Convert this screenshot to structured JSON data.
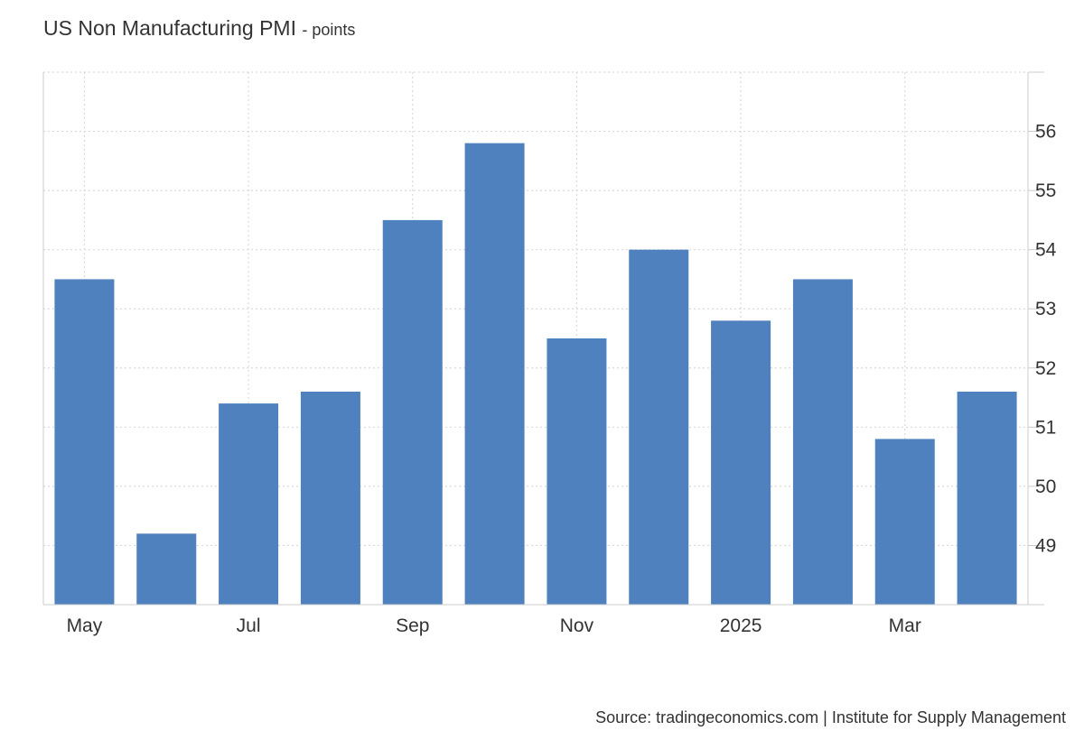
{
  "title": "US Non Manufacturing PMI",
  "subtitle": "- points",
  "source": "Source: tradingeconomics.com | Institute for Supply Management",
  "colors": {
    "bar": "#4e81bd",
    "grid": "#d9d9d9",
    "axis": "#cccccc",
    "text": "#333333"
  },
  "chart_data": {
    "type": "bar",
    "categories": [
      "May",
      "",
      "Jul",
      "",
      "Sep",
      "",
      "Nov",
      "",
      "2025",
      "",
      "Mar",
      ""
    ],
    "x_tick_labels": [
      "May",
      "Jul",
      "Sep",
      "Nov",
      "2025",
      "Mar"
    ],
    "values": [
      53.5,
      49.2,
      51.4,
      51.6,
      54.5,
      55.8,
      52.5,
      54.0,
      52.8,
      53.5,
      50.8,
      51.6
    ],
    "y_ticks": [
      49,
      50,
      51,
      52,
      53,
      54,
      55,
      56
    ],
    "ylim": [
      48,
      57
    ],
    "y_axis_side": "right",
    "grid": true,
    "title": "US Non Manufacturing PMI",
    "xlabel": "",
    "ylabel": ""
  }
}
